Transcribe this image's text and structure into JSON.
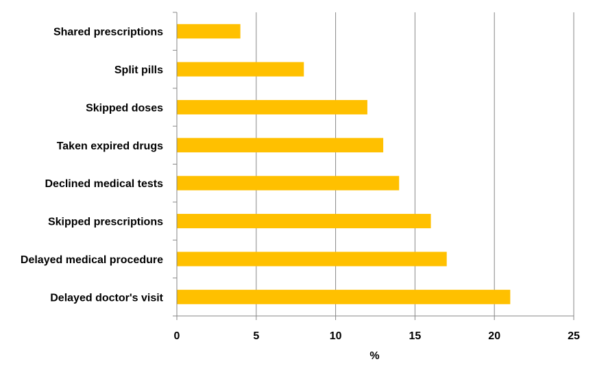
{
  "chart_data": {
    "type": "bar",
    "orientation": "horizontal",
    "categories": [
      "Shared prescriptions",
      "Split pills",
      "Skipped doses",
      "Taken expired drugs",
      "Declined medical tests",
      "Skipped prescriptions",
      "Delayed medical procedure",
      "Delayed doctor's visit"
    ],
    "values": [
      4,
      8,
      12,
      13,
      14,
      16,
      17,
      21
    ],
    "xlabel": "%",
    "xlim": [
      0,
      25
    ],
    "xticks": [
      0,
      5,
      10,
      15,
      20,
      25
    ],
    "grid": "vertical",
    "legend": "none",
    "bar_color": "#FFC000"
  }
}
